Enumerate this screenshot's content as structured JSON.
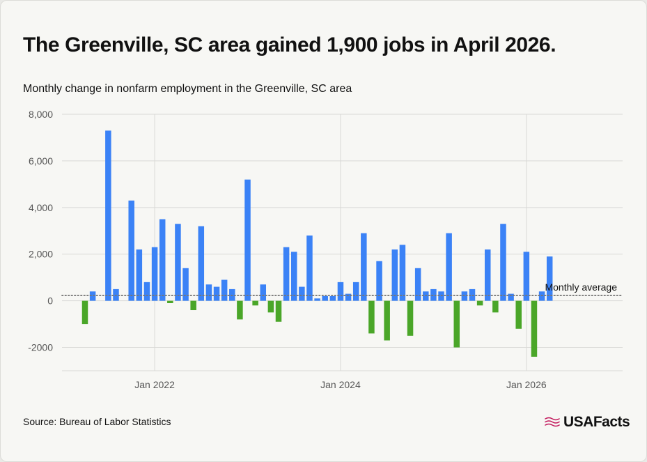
{
  "header": {
    "title": "The Greenville, SC area gained 1,900 jobs in April 2026.",
    "subtitle": "Monthly change in nonfarm employment in the Greenville, SC area"
  },
  "footer": {
    "source": "Source: Bureau of Labor Statistics",
    "brand": "USAFacts"
  },
  "colors": {
    "positive": "#3b82f6",
    "negative": "#4aa628",
    "average_line": "#777777",
    "grid": "#d9d9d6",
    "axis_text": "#555555",
    "brand_flag": "#c2185b"
  },
  "chart_data": {
    "type": "bar",
    "xlabel": "",
    "ylabel": "",
    "ylim": [
      -3000,
      8000
    ],
    "yticks": [
      -2000,
      0,
      2000,
      4000,
      6000,
      8000
    ],
    "ytick_labels": [
      "-2000",
      "0",
      "2,000",
      "4,000",
      "6,000",
      "8,000"
    ],
    "xticks": [
      {
        "date": "2022-01",
        "label": "Jan 2022"
      },
      {
        "date": "2024-01",
        "label": "Jan 2024"
      },
      {
        "date": "2026-01",
        "label": "Jan 2026"
      }
    ],
    "grid": true,
    "average": {
      "label": "Monthly average",
      "value": 230
    },
    "categories": [
      "2021-04",
      "2021-05",
      "2021-06",
      "2021-07",
      "2021-08",
      "2021-09",
      "2021-10",
      "2021-11",
      "2021-12",
      "2022-01",
      "2022-02",
      "2022-03",
      "2022-04",
      "2022-05",
      "2022-06",
      "2022-07",
      "2022-08",
      "2022-09",
      "2022-10",
      "2022-11",
      "2022-12",
      "2023-01",
      "2023-02",
      "2023-03",
      "2023-04",
      "2023-05",
      "2023-06",
      "2023-07",
      "2023-08",
      "2023-09",
      "2023-10",
      "2023-11",
      "2023-12",
      "2024-01",
      "2024-02",
      "2024-03",
      "2024-04",
      "2024-05",
      "2024-06",
      "2024-07",
      "2024-08",
      "2024-09",
      "2024-10",
      "2024-11",
      "2024-12",
      "2025-01",
      "2025-02",
      "2025-03",
      "2025-04",
      "2025-05",
      "2025-06",
      "2025-07",
      "2025-08",
      "2025-09",
      "2025-10",
      "2025-11",
      "2025-12",
      "2026-01",
      "2026-02",
      "2026-03",
      "2026-04"
    ],
    "values": [
      -1000,
      400,
      0,
      7300,
      500,
      0,
      4300,
      2200,
      800,
      2300,
      3500,
      -100,
      3300,
      1400,
      -400,
      3200,
      700,
      600,
      900,
      500,
      -800,
      5200,
      -200,
      700,
      -500,
      -900,
      2300,
      2100,
      600,
      2800,
      100,
      200,
      200,
      800,
      300,
      800,
      2900,
      -1400,
      1700,
      -1700,
      2200,
      2400,
      -1500,
      1400,
      400,
      500,
      400,
      2900,
      -2000,
      400,
      500,
      -200,
      2200,
      -500,
      3300,
      300,
      -1200,
      2100,
      -2400,
      400,
      1900
    ]
  }
}
